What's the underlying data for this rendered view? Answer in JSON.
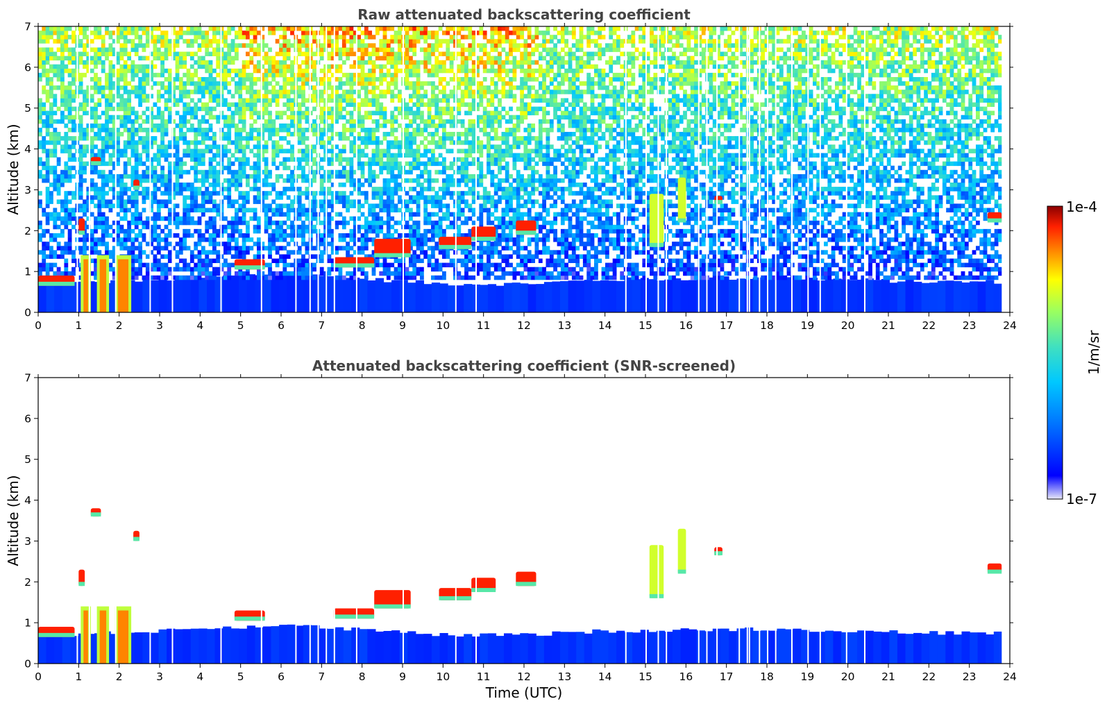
{
  "colors": {
    "low": "#0000ff",
    "high": "#8b0000",
    "colormap": [
      "#e8e8f8",
      "#0000ff",
      "#0070ff",
      "#00c8ff",
      "#40e0c0",
      "#9aff60",
      "#ffff00",
      "#ff9000",
      "#ff2000",
      "#8b0000"
    ]
  },
  "colorbar": {
    "max_label": "1e-4",
    "min_label": "1e-7",
    "unit_label": "1/m/sr",
    "range": [
      1e-07,
      0.0001
    ],
    "scale": "log"
  },
  "chart_data": [
    {
      "type": "heatmap",
      "title": "Raw attenuated backscattering coefficient",
      "xlabel": "",
      "ylabel": "Altitude (km)",
      "xlim": [
        0,
        24
      ],
      "ylim": [
        0,
        7
      ],
      "x_ticks": [
        "0",
        "1",
        "2",
        "3",
        "4",
        "5",
        "6",
        "7",
        "8",
        "9",
        "10",
        "11",
        "12",
        "13",
        "14",
        "15",
        "16",
        "17",
        "18",
        "19",
        "20",
        "21",
        "22",
        "23",
        "24"
      ],
      "y_ticks": [
        "0",
        "1",
        "2",
        "3",
        "4",
        "5",
        "6",
        "7"
      ],
      "data_end_time": 23.8,
      "boundary_layer_top_km": [
        [
          0,
          0.7
        ],
        [
          2,
          0.75
        ],
        [
          6,
          0.95
        ],
        [
          10,
          0.7
        ],
        [
          12,
          0.7
        ],
        [
          14,
          0.8
        ],
        [
          18,
          0.85
        ],
        [
          22,
          0.75
        ],
        [
          23.8,
          0.75
        ]
      ],
      "data_gaps_utc": [
        0.95,
        1.25,
        1.9,
        2.75,
        3.3,
        4.5,
        5.5,
        6.35,
        6.7,
        6.9,
        7.1,
        7.3,
        7.85,
        9.0,
        10.3,
        10.8,
        14.5,
        15.0,
        15.3,
        15.5,
        16.3,
        16.5,
        16.75,
        17.3,
        17.5,
        17.55,
        17.8,
        18.0,
        18.2,
        18.6,
        19.0,
        19.3,
        19.95,
        20.4
      ],
      "cloud_layers": [
        {
          "t0": 0.0,
          "t1": 0.9,
          "base_km": 0.65,
          "top_km": 0.9,
          "level": "high"
        },
        {
          "t0": 1.3,
          "t1": 1.55,
          "base_km": 3.6,
          "top_km": 3.8,
          "level": "high"
        },
        {
          "t0": 2.35,
          "t1": 2.5,
          "base_km": 3.0,
          "top_km": 3.25,
          "level": "high"
        },
        {
          "t0": 1.0,
          "t1": 1.15,
          "base_km": 1.9,
          "top_km": 2.3,
          "level": "high"
        },
        {
          "t0": 4.85,
          "t1": 5.6,
          "base_km": 1.05,
          "top_km": 1.3,
          "level": "high"
        },
        {
          "t0": 7.3,
          "t1": 8.3,
          "base_km": 1.1,
          "top_km": 1.35,
          "level": "high"
        },
        {
          "t0": 8.3,
          "t1": 9.2,
          "base_km": 1.35,
          "top_km": 1.8,
          "level": "high"
        },
        {
          "t0": 9.9,
          "t1": 10.7,
          "base_km": 1.55,
          "top_km": 1.85,
          "level": "high"
        },
        {
          "t0": 10.7,
          "t1": 11.3,
          "base_km": 1.75,
          "top_km": 2.1,
          "level": "high"
        },
        {
          "t0": 11.8,
          "t1": 12.3,
          "base_km": 1.9,
          "top_km": 2.25,
          "level": "high"
        },
        {
          "t0": 15.1,
          "t1": 15.45,
          "base_km": 1.6,
          "top_km": 2.9,
          "level": "mid"
        },
        {
          "t0": 15.8,
          "t1": 16.0,
          "base_km": 2.2,
          "top_km": 3.3,
          "level": "mid"
        },
        {
          "t0": 16.7,
          "t1": 16.9,
          "base_km": 2.65,
          "top_km": 2.85,
          "level": "high"
        },
        {
          "t0": 23.45,
          "t1": 23.8,
          "base_km": 2.2,
          "top_km": 2.45,
          "level": "high"
        }
      ]
    },
    {
      "type": "heatmap",
      "title": "Attenuated backscattering coefficient (SNR-screened)",
      "xlabel": "Time (UTC)",
      "ylabel": "Altitude (km)",
      "xlim": [
        0,
        24
      ],
      "ylim": [
        0,
        7
      ],
      "x_ticks": [
        "0",
        "1",
        "2",
        "3",
        "4",
        "5",
        "6",
        "7",
        "8",
        "9",
        "10",
        "11",
        "12",
        "13",
        "14",
        "15",
        "16",
        "17",
        "18",
        "19",
        "20",
        "21",
        "22",
        "23",
        "24"
      ],
      "y_ticks": [
        "0",
        "1",
        "2",
        "3",
        "4",
        "5",
        "6",
        "7"
      ],
      "noise_screened": true
    }
  ]
}
